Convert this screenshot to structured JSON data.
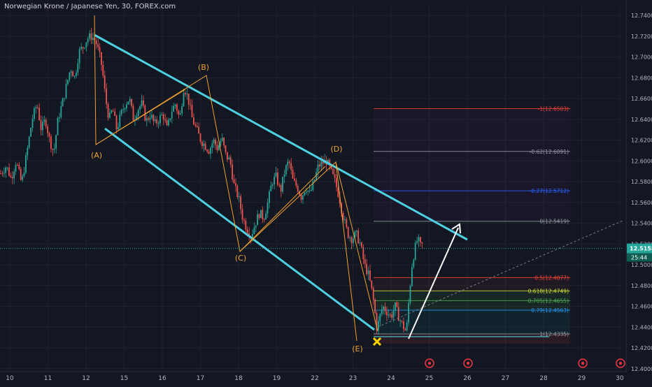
{
  "header": {
    "title": "Norwegian Krone / Japanese Yen, 30, FOREX.com"
  },
  "colors": {
    "background": "#131722",
    "grid": "#1e222d",
    "up": "#26a69a",
    "down": "#ef5350",
    "channel": "#4dd0e1",
    "wave": "#f0a030",
    "arrow": "#ffffff",
    "marker": "#ffd600",
    "price_line": "#26a69a"
  },
  "chart_data": {
    "type": "candlestick",
    "y_ticks": [
      "12.7400",
      "12.7200",
      "12.7000",
      "12.6800",
      "12.6600",
      "12.6400",
      "12.6200",
      "12.6000",
      "12.5800",
      "12.5600",
      "12.5400",
      "12.5200",
      "12.5000",
      "12.4800",
      "12.4600",
      "12.4400",
      "12.4200",
      "12.4000"
    ],
    "ylim": [
      12.3985,
      12.7495
    ],
    "x_ticks": [
      "10",
      "11",
      "12",
      "15",
      "16",
      "17",
      "18",
      "19",
      "22",
      "23",
      "24",
      "25",
      "26",
      "27",
      "28",
      "29",
      "30"
    ],
    "current_price": {
      "value": "12.5158",
      "countdown": "25:44"
    },
    "wave_labels": [
      "(A)",
      "(B)",
      "(C)",
      "(D)",
      "(E)"
    ],
    "fib_levels": [
      {
        "label": "-1(12.6503)",
        "value": 12.6503,
        "color": "#f44336"
      },
      {
        "label": "-0.62(12.6091)",
        "value": 12.6091,
        "color": "#9598a1"
      },
      {
        "label": "-0.27(12.5712)",
        "value": 12.5712,
        "color": "#2962ff"
      },
      {
        "label": "0(12.5419)",
        "value": 12.5419,
        "color": "#9598a1"
      },
      {
        "label": "0.5(12.4877)",
        "value": 12.4877,
        "color": "#f44336"
      },
      {
        "label": "0.618(12.4749)",
        "value": 12.4749,
        "color": "#cddc39"
      },
      {
        "label": "0.705(12.4655)",
        "value": 12.4655,
        "color": "#4caf50"
      },
      {
        "label": "0.79(12.4563)",
        "value": 12.4563,
        "color": "#2196f3"
      },
      {
        "label": "1(12.4335)",
        "value": 12.4335,
        "color": "#9598a1"
      }
    ],
    "price_path": [
      [
        0,
        12.588
      ],
      [
        8,
        12.595
      ],
      [
        15,
        12.583
      ],
      [
        22,
        12.6
      ],
      [
        30,
        12.578
      ],
      [
        38,
        12.61
      ],
      [
        45,
        12.64
      ],
      [
        52,
        12.655
      ],
      [
        58,
        12.63
      ],
      [
        64,
        12.64
      ],
      [
        70,
        12.62
      ],
      [
        76,
        12.608
      ],
      [
        82,
        12.64
      ],
      [
        88,
        12.655
      ],
      [
        95,
        12.675
      ],
      [
        100,
        12.69
      ],
      [
        106,
        12.68
      ],
      [
        112,
        12.705
      ],
      [
        118,
        12.71
      ],
      [
        124,
        12.718
      ],
      [
        130,
        12.72
      ],
      [
        136,
        12.715
      ],
      [
        140,
        12.705
      ],
      [
        145,
        12.69
      ],
      [
        150,
        12.66
      ],
      [
        155,
        12.64
      ],
      [
        160,
        12.65
      ],
      [
        166,
        12.63
      ],
      [
        172,
        12.645
      ],
      [
        178,
        12.655
      ],
      [
        184,
        12.66
      ],
      [
        190,
        12.64
      ],
      [
        196,
        12.65
      ],
      [
        202,
        12.655
      ],
      [
        208,
        12.638
      ],
      [
        214,
        12.645
      ],
      [
        220,
        12.635
      ],
      [
        226,
        12.64
      ],
      [
        232,
        12.645
      ],
      [
        238,
        12.63
      ],
      [
        244,
        12.648
      ],
      [
        250,
        12.655
      ],
      [
        256,
        12.64
      ],
      [
        262,
        12.672
      ],
      [
        268,
        12.66
      ],
      [
        274,
        12.64
      ],
      [
        280,
        12.63
      ],
      [
        286,
        12.62
      ],
      [
        292,
        12.615
      ],
      [
        298,
        12.61
      ],
      [
        304,
        12.62
      ],
      [
        310,
        12.612
      ],
      [
        316,
        12.622
      ],
      [
        322,
        12.605
      ],
      [
        328,
        12.6
      ],
      [
        334,
        12.575
      ],
      [
        340,
        12.565
      ],
      [
        346,
        12.545
      ],
      [
        352,
        12.535
      ],
      [
        358,
        12.528
      ],
      [
        364,
        12.54
      ],
      [
        370,
        12.55
      ],
      [
        376,
        12.545
      ],
      [
        382,
        12.56
      ],
      [
        388,
        12.58
      ],
      [
        394,
        12.585
      ],
      [
        400,
        12.57
      ],
      [
        406,
        12.59
      ],
      [
        412,
        12.6
      ],
      [
        418,
        12.58
      ],
      [
        424,
        12.575
      ],
      [
        430,
        12.565
      ],
      [
        436,
        12.575
      ],
      [
        442,
        12.568
      ],
      [
        448,
        12.58
      ],
      [
        454,
        12.595
      ],
      [
        460,
        12.598
      ],
      [
        466,
        12.6
      ],
      [
        472,
        12.59
      ],
      [
        478,
        12.58
      ],
      [
        484,
        12.565
      ],
      [
        490,
        12.545
      ],
      [
        496,
        12.53
      ],
      [
        502,
        12.525
      ],
      [
        508,
        12.53
      ],
      [
        514,
        12.52
      ],
      [
        520,
        12.5
      ],
      [
        526,
        12.49
      ],
      [
        532,
        12.47
      ],
      [
        538,
        12.438
      ],
      [
        542,
        12.45
      ],
      [
        546,
        12.46
      ],
      [
        552,
        12.455
      ],
      [
        558,
        12.45
      ],
      [
        564,
        12.46
      ],
      [
        570,
        12.448
      ],
      [
        576,
        12.44
      ],
      [
        580,
        12.435
      ],
      [
        584,
        12.47
      ],
      [
        588,
        12.5
      ],
      [
        592,
        12.515
      ],
      [
        596,
        12.525
      ],
      [
        600,
        12.518
      ],
      [
        604,
        12.52
      ]
    ]
  }
}
